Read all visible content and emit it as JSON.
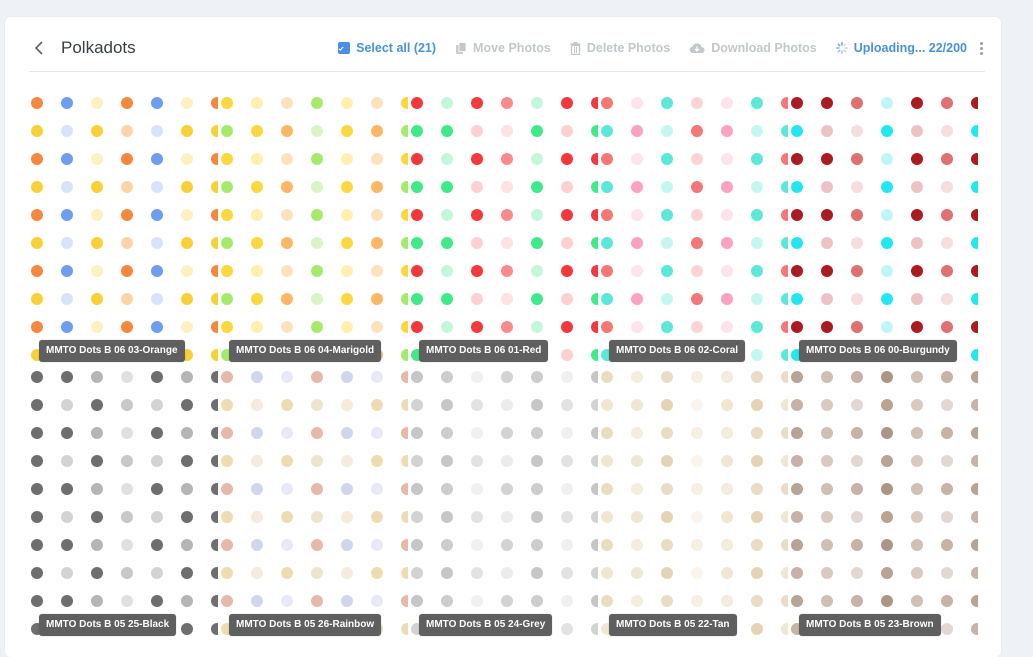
{
  "header": {
    "title": "Polkadots",
    "select_all": "Select all (21)",
    "move": "Move Photos",
    "delete": "Delete Photos",
    "download": "Download Photos",
    "uploading": "Uploading... 22/200"
  },
  "colors": {
    "accent": "#4a90e2",
    "disabled": "#c3c7cc",
    "label_bg": "#5f5f5f"
  },
  "photos": [
    {
      "label": "MMTO Dots B 06 03-Orange",
      "palette": [
        "#f5883e",
        "#f9d038",
        "#6e9ef0",
        "#fdd4a8",
        "#fdf1c2",
        "#d7e3fb"
      ]
    },
    {
      "label": "MMTO Dots B 06 04-Marigold",
      "palette": [
        "#fcd740",
        "#a6ea6c",
        "#fbb764",
        "#fff0b0",
        "#daf5c4",
        "#fde3bd"
      ]
    },
    {
      "label": "MMTO Dots B 06 01-Red",
      "palette": [
        "#f2393d",
        "#40ea88",
        "#fb8b8b",
        "#fdd0d0",
        "#c4f7da",
        "#fde2e2"
      ]
    },
    {
      "label": "MMTO Dots B 06 02-Coral",
      "palette": [
        "#f57777",
        "#5be8d8",
        "#f9a2c2",
        "#fdd3d3",
        "#c7f6f0",
        "#fde3ec"
      ]
    },
    {
      "label": "MMTO Dots B 06 00-Burgundy",
      "palette": [
        "#a81c22",
        "#22e7ef",
        "#e06f6f",
        "#ebc3c3",
        "#c1f6f9",
        "#f4dede"
      ]
    },
    {
      "label": "MMTO Dots B 05 25-Black",
      "palette": [
        "#6e6e6e",
        "#6e6e6e",
        "#c8c8c8",
        "#b5b5b5",
        "#d3d3d3",
        "#e0e0e0"
      ]
    },
    {
      "label": "MMTO Dots B 05 26-Rainbow",
      "palette": [
        "#e8b8a8",
        "#ecdcb0",
        "#d0d6ec",
        "#efe5cf",
        "#e7eaf6",
        "#f5eadc"
      ]
    },
    {
      "label": "MMTO Dots B 05 24-Grey",
      "palette": [
        "#c6c6c6",
        "#d2d2d2",
        "#e2e2e2",
        "#cdcdcd",
        "#ebebeb",
        "#f0f0f0"
      ]
    },
    {
      "label": "MMTO Dots B 05 22-Tan",
      "palette": [
        "#e9dcc2",
        "#f0e6d2",
        "#f6efe2",
        "#e4d4b5",
        "#f4ecdc",
        "#faf5ec"
      ]
    },
    {
      "label": "MMTO Dots B 05 23-Brown",
      "palette": [
        "#b9a394",
        "#c6b3a6",
        "#d8cac0",
        "#ad9585",
        "#e3d8d1",
        "#cfbfb4"
      ]
    }
  ]
}
